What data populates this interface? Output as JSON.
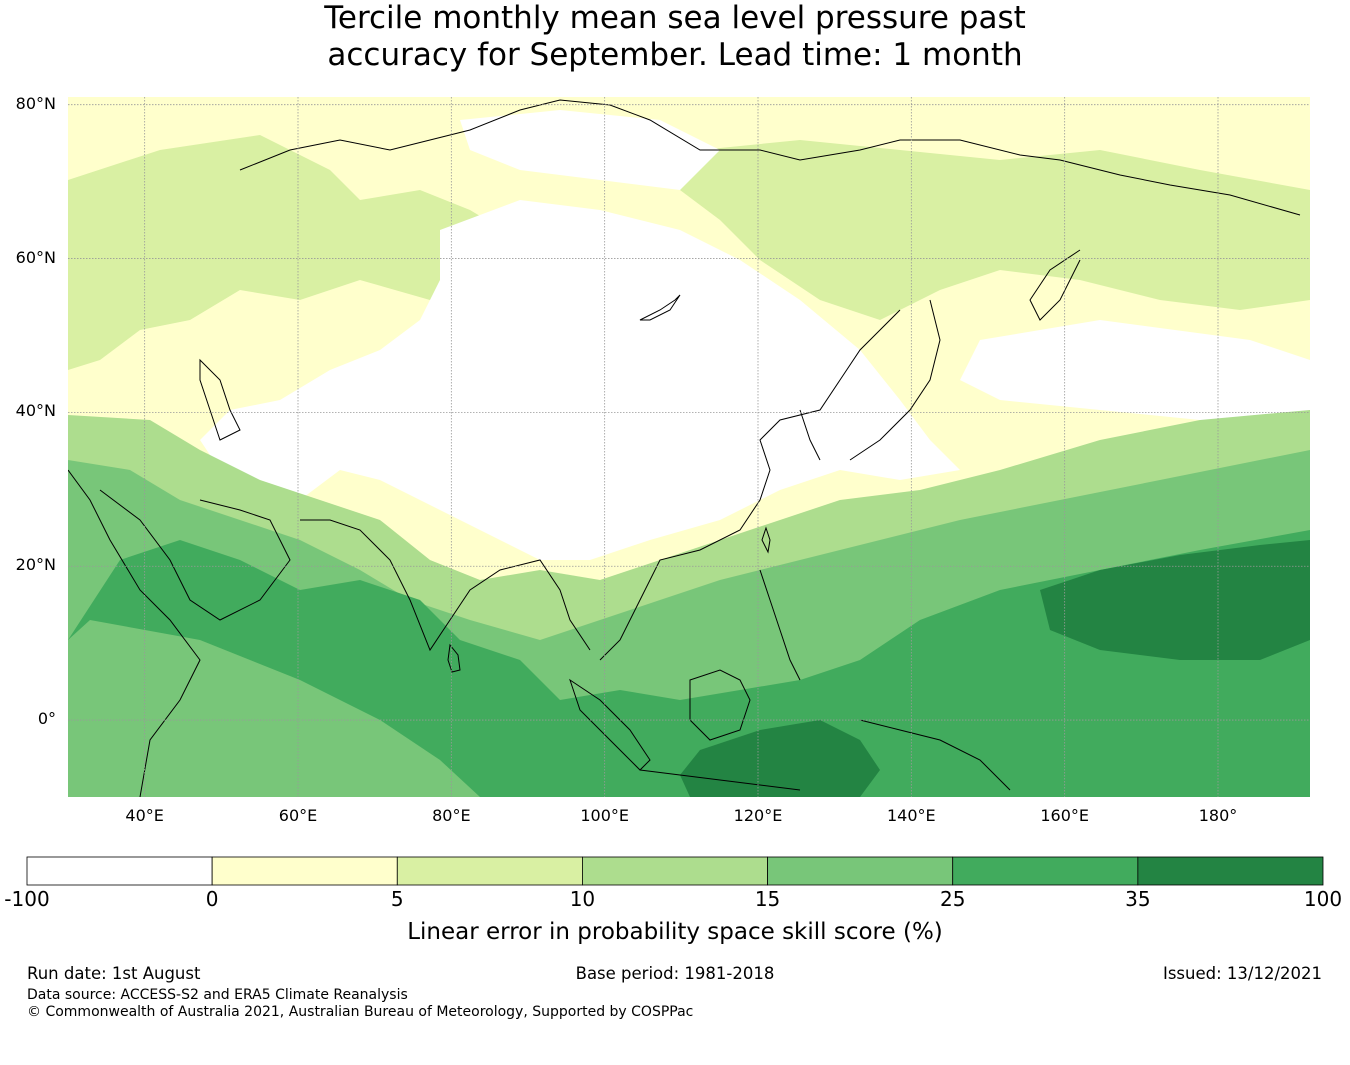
{
  "title_lines": [
    "Tercile monthly mean sea level pressure past",
    "accuracy for September. Lead time: 1 month"
  ],
  "lat_labels": [
    "80°N",
    "60°N",
    "40°N",
    "20°N",
    "0°"
  ],
  "lon_labels": [
    "40°E",
    "60°E",
    "80°E",
    "100°E",
    "120°E",
    "140°E",
    "160°E",
    "180°"
  ],
  "map_extent": {
    "lon_range": [
      30,
      192
    ],
    "lat_range": [
      -10,
      81
    ]
  },
  "gridlines": {
    "lon": [
      40,
      60,
      80,
      100,
      120,
      140,
      160,
      180
    ],
    "lat": [
      80,
      60,
      40,
      20,
      0
    ]
  },
  "colorbar": {
    "ticks": [
      "-100",
      "0",
      "5",
      "10",
      "15",
      "25",
      "35",
      "100"
    ],
    "colors": [
      "#ffffff",
      "#ffffcc",
      "#d9f0a3",
      "#addd8e",
      "#78c679",
      "#41ab5d",
      "#238443"
    ],
    "label": "Linear error in probability space skill score (%)"
  },
  "field_regions": [
    {
      "level": 1,
      "region": "northern high latitudes"
    },
    {
      "level": 2,
      "region": "western Siberia / Europe"
    },
    {
      "level": 0,
      "region": "central Asia / Mongolia"
    },
    {
      "level": 3,
      "region": "Arabia / Indian Ocean"
    },
    {
      "level": 4,
      "region": "tropical Indian Ocean"
    },
    {
      "level": 5,
      "region": "Indonesian seas"
    },
    {
      "level": 6,
      "region": "western tropical Pacific"
    }
  ],
  "footer": {
    "run_date": "Run date: 1st August",
    "base_period": "Base period: 1981-2018",
    "issued": "Issued: 13/12/2021",
    "data_source": "Data source: ACCESS-S2 and ERA5 Climate Reanalysis",
    "copyright": "© Commonwealth of Australia 2021, Australian Bureau of Meteorology, Supported by COSPPac"
  }
}
